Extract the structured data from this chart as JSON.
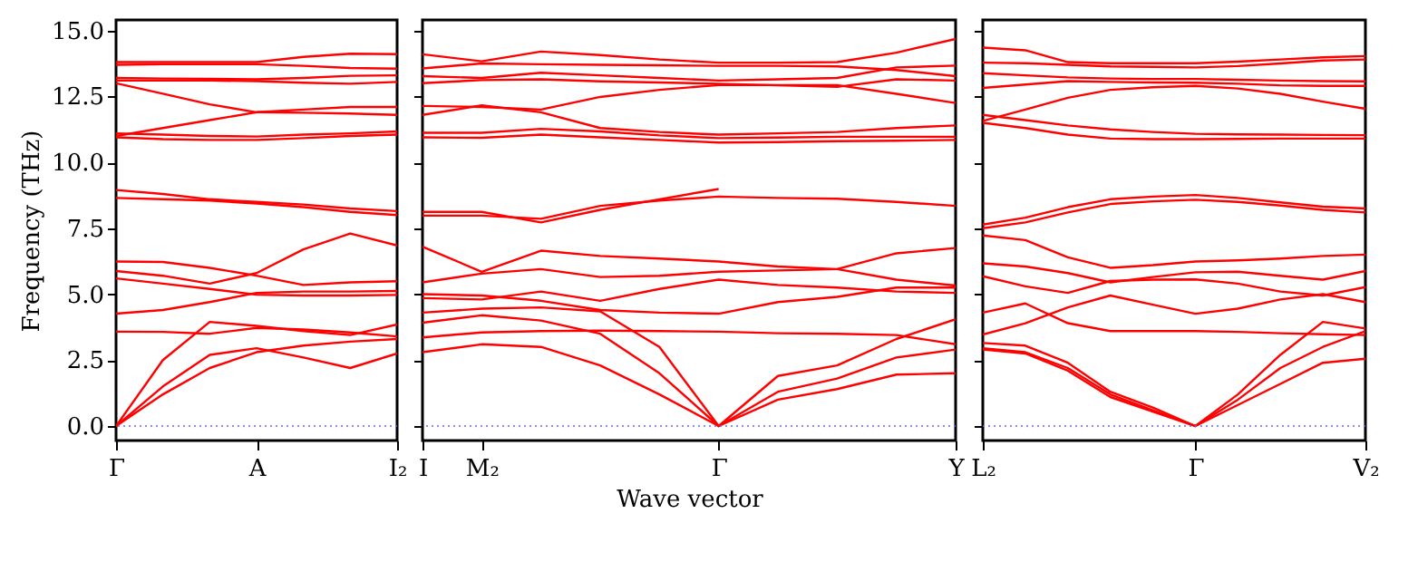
{
  "chart_data": [
    {
      "type": "line",
      "ylabel": "Frequency (THz)",
      "categories": [
        "Γ",
        null,
        null,
        "A",
        null,
        null,
        "I₂"
      ],
      "ylim": [
        -0.55,
        15.4
      ],
      "yticks": [
        {
          "value": 0,
          "label": "0.0"
        },
        {
          "value": 2.5,
          "label": "2.5"
        },
        {
          "value": 5,
          "label": "5.0"
        },
        {
          "value": 7.5,
          "label": "7.5"
        },
        {
          "value": 10,
          "label": "10.0"
        },
        {
          "value": 12.5,
          "label": "12.5"
        },
        {
          "value": 15,
          "label": "15.0"
        }
      ],
      "ref_lines": [
        {
          "axis": "y",
          "value": 0,
          "color": "#6666ff",
          "line_style": "dotted"
        }
      ],
      "series": [
        {
          "color": "#ff0000",
          "values": [
            13.8,
            13.8,
            13.8,
            13.8,
            14.0,
            14.12,
            14.1
          ]
        },
        {
          "color": "#ff0000",
          "values": [
            13.7,
            13.72,
            13.72,
            13.72,
            13.66,
            13.58,
            13.55
          ]
        },
        {
          "color": "#ff0000",
          "values": [
            13.2,
            13.18,
            13.17,
            13.15,
            13.2,
            13.28,
            13.3
          ]
        },
        {
          "color": "#ff0000",
          "values": [
            13.1,
            13.1,
            13.1,
            13.08,
            13.02,
            12.98,
            13.05
          ]
        },
        {
          "color": "#ff0000",
          "values": [
            13.0,
            12.6,
            12.2,
            11.9,
            11.88,
            11.85,
            11.8
          ]
        },
        {
          "color": "#ff0000",
          "values": [
            11.0,
            11.3,
            11.6,
            11.9,
            12.0,
            12.1,
            12.1
          ]
        },
        {
          "color": "#ff0000",
          "values": [
            11.1,
            11.05,
            11.0,
            10.98,
            11.05,
            11.1,
            11.17
          ]
        },
        {
          "color": "#ff0000",
          "values": [
            10.95,
            10.88,
            10.85,
            10.85,
            10.92,
            11.0,
            11.05
          ]
        },
        {
          "color": "#ff0000",
          "values": [
            8.95,
            8.8,
            8.6,
            8.5,
            8.4,
            8.25,
            8.15
          ]
        },
        {
          "color": "#ff0000",
          "values": [
            8.65,
            8.6,
            8.55,
            8.44,
            8.3,
            8.12,
            8.0
          ]
        },
        {
          "color": "#ff0000",
          "values": [
            6.24,
            6.22,
            6.0,
            5.7,
            5.35,
            5.45,
            5.49
          ]
        },
        {
          "color": "#ff0000",
          "values": [
            5.88,
            5.7,
            5.4,
            5.8,
            6.7,
            7.3,
            6.85
          ]
        },
        {
          "color": "#ff0000",
          "values": [
            5.6,
            5.4,
            5.2,
            4.98,
            4.95,
            4.95,
            4.97
          ]
        },
        {
          "color": "#ff0000",
          "values": [
            4.26,
            4.4,
            4.7,
            5.05,
            5.1,
            5.1,
            5.12
          ]
        },
        {
          "color": "#ff0000",
          "values": [
            0,
            2.5,
            3.95,
            3.8,
            3.6,
            3.45,
            3.85
          ]
        },
        {
          "color": "#ff0000",
          "values": [
            3.58,
            3.57,
            3.5,
            3.72,
            3.66,
            3.55,
            3.4
          ]
        },
        {
          "color": "#ff0000",
          "values": [
            0,
            1.5,
            2.7,
            2.95,
            2.6,
            2.2,
            2.75
          ]
        },
        {
          "color": "#ff0000",
          "values": [
            0,
            1.2,
            2.2,
            2.8,
            3.05,
            3.2,
            3.3
          ]
        }
      ]
    },
    {
      "type": "line",
      "xlabel": "Wave vector",
      "tick_labels": "x",
      "categories": [
        "I",
        "M₂",
        null,
        null,
        null,
        "Γ",
        null,
        null,
        null,
        "Y"
      ],
      "ylim": [
        -0.55,
        15.4
      ],
      "yticks": [
        {
          "value": 0,
          "label": null
        },
        {
          "value": 2.5,
          "label": null
        },
        {
          "value": 5,
          "label": null
        },
        {
          "value": 7.5,
          "label": null
        },
        {
          "value": 10,
          "label": null
        },
        {
          "value": 12.5,
          "label": null
        },
        {
          "value": 15,
          "label": null
        }
      ],
      "ref_lines": [
        {
          "axis": "y",
          "value": 0,
          "color": "#6666ff",
          "line_style": "dotted"
        }
      ],
      "series": [
        {
          "color": "#ff0000",
          "values": [
            14.1,
            13.83,
            14.2,
            14.07,
            13.9,
            13.78,
            13.78,
            13.8,
            14.16,
            14.68
          ]
        },
        {
          "color": "#ff0000",
          "values": [
            13.56,
            13.75,
            13.72,
            13.7,
            13.68,
            13.66,
            13.66,
            13.64,
            13.5,
            13.27
          ]
        },
        {
          "color": "#ff0000",
          "values": [
            13.27,
            13.2,
            13.4,
            13.3,
            13.2,
            13.1,
            13.15,
            13.2,
            13.6,
            13.67
          ]
        },
        {
          "color": "#ff0000",
          "values": [
            13.0,
            13.12,
            13.15,
            13.07,
            13.03,
            12.98,
            12.92,
            12.86,
            13.15,
            13.1
          ]
        },
        {
          "color": "#ff0000",
          "values": [
            12.14,
            12.1,
            12.0,
            12.48,
            12.75,
            12.93,
            12.93,
            12.93,
            12.6,
            12.25
          ]
        },
        {
          "color": "#ff0000",
          "values": [
            11.8,
            12.16,
            11.9,
            11.3,
            11.15,
            11.05,
            11.1,
            11.15,
            11.3,
            11.4
          ]
        },
        {
          "color": "#ff0000",
          "values": [
            11.12,
            11.12,
            11.27,
            11.17,
            11.02,
            10.92,
            10.94,
            10.97,
            10.97,
            10.97
          ]
        },
        {
          "color": "#ff0000",
          "values": [
            10.95,
            10.93,
            11.05,
            10.95,
            10.85,
            10.75,
            10.77,
            10.8,
            10.82,
            10.85
          ]
        },
        {
          "color": "#ff0000",
          "values": [
            8.12,
            8.12,
            7.72,
            8.2,
            8.6,
            8.99,
            null,
            null,
            null,
            null
          ]
        },
        {
          "color": "#ff0000",
          "values": [
            7.98,
            7.98,
            7.86,
            8.35,
            8.55,
            8.7,
            8.65,
            8.62,
            8.5,
            8.35
          ]
        },
        {
          "color": "#ff0000",
          "values": [
            6.8,
            5.85,
            6.65,
            6.45,
            6.35,
            6.24,
            6.05,
            5.95,
            5.55,
            5.33
          ]
        },
        {
          "color": "#ff0000",
          "values": [
            5.45,
            5.78,
            5.95,
            5.65,
            5.7,
            5.85,
            5.9,
            5.95,
            6.55,
            6.75
          ]
        },
        {
          "color": "#ff0000",
          "values": [
            4.85,
            4.8,
            5.1,
            4.75,
            5.2,
            5.55,
            5.35,
            5.25,
            5.1,
            5.05
          ]
        },
        {
          "color": "#ff0000",
          "values": [
            5.0,
            4.95,
            4.75,
            4.4,
            4.3,
            4.26,
            4.7,
            4.9,
            5.25,
            5.25
          ]
        },
        {
          "color": "#ff0000",
          "values": [
            3.36,
            3.55,
            3.6,
            3.62,
            3.6,
            3.58,
            3.52,
            3.5,
            3.45,
            3.1
          ]
        },
        {
          "color": "#ff0000",
          "values": [
            4.3,
            4.45,
            4.5,
            4.35,
            3.0,
            0,
            1.9,
            2.3,
            3.3,
            4.05
          ]
        },
        {
          "color": "#ff0000",
          "values": [
            3.92,
            4.2,
            4.0,
            3.5,
            2.0,
            0,
            1.3,
            1.8,
            2.6,
            2.9
          ]
        },
        {
          "color": "#ff0000",
          "values": [
            2.8,
            3.1,
            3.0,
            2.3,
            1.2,
            0,
            1.0,
            1.4,
            1.95,
            2.0
          ]
        }
      ]
    },
    {
      "type": "line",
      "tick_labels": "x",
      "categories": [
        "L₂",
        null,
        null,
        null,
        null,
        "Γ",
        null,
        null,
        null,
        "V₂"
      ],
      "ylim": [
        -0.55,
        15.4
      ],
      "yticks": [
        {
          "value": 0,
          "label": null
        },
        {
          "value": 2.5,
          "label": null
        },
        {
          "value": 5,
          "label": null
        },
        {
          "value": 7.5,
          "label": null
        },
        {
          "value": 10,
          "label": null
        },
        {
          "value": 12.5,
          "label": null
        },
        {
          "value": 15,
          "label": null
        }
      ],
      "ref_lines": [
        {
          "axis": "y",
          "value": 0,
          "color": "#6666ff",
          "line_style": "dotted"
        }
      ],
      "series": [
        {
          "color": "#ff0000",
          "values": [
            14.35,
            14.25,
            13.8,
            13.76,
            13.76,
            13.76,
            13.82,
            13.9,
            13.98,
            14.03
          ]
        },
        {
          "color": "#ff0000",
          "values": [
            13.78,
            13.76,
            13.7,
            13.64,
            13.62,
            13.6,
            13.65,
            13.75,
            13.86,
            13.9
          ]
        },
        {
          "color": "#ff0000",
          "values": [
            13.38,
            13.3,
            13.22,
            13.18,
            13.16,
            13.16,
            13.13,
            13.1,
            13.08,
            13.07
          ]
        },
        {
          "color": "#ff0000",
          "values": [
            12.82,
            12.95,
            13.08,
            13.05,
            13.03,
            13.02,
            12.98,
            12.92,
            12.9,
            12.9
          ]
        },
        {
          "color": "#ff0000",
          "values": [
            11.57,
            12.0,
            12.45,
            12.75,
            12.85,
            12.9,
            12.8,
            12.6,
            12.3,
            12.03
          ]
        },
        {
          "color": "#ff0000",
          "values": [
            11.8,
            11.6,
            11.4,
            11.25,
            11.15,
            11.08,
            11.06,
            11.05,
            11.04,
            11.03
          ]
        },
        {
          "color": "#ff0000",
          "values": [
            11.5,
            11.3,
            11.05,
            10.9,
            10.88,
            10.88,
            10.89,
            10.9,
            10.9,
            10.9
          ]
        },
        {
          "color": "#ff0000",
          "values": [
            7.64,
            7.9,
            8.3,
            8.6,
            8.7,
            8.76,
            8.65,
            8.48,
            8.32,
            8.25
          ]
        },
        {
          "color": "#ff0000",
          "values": [
            7.5,
            7.72,
            8.1,
            8.42,
            8.52,
            8.58,
            8.5,
            8.36,
            8.2,
            8.1
          ]
        },
        {
          "color": "#ff0000",
          "values": [
            7.23,
            7.05,
            6.4,
            6.0,
            6.1,
            6.24,
            6.28,
            6.35,
            6.45,
            6.5
          ]
        },
        {
          "color": "#ff0000",
          "values": [
            6.17,
            6.05,
            5.8,
            5.45,
            5.65,
            5.83,
            5.85,
            5.7,
            5.55,
            5.88
          ]
        },
        {
          "color": "#ff0000",
          "values": [
            5.68,
            5.3,
            5.05,
            5.5,
            5.55,
            5.56,
            5.4,
            5.1,
            4.95,
            5.27
          ]
        },
        {
          "color": "#ff0000",
          "values": [
            4.3,
            4.65,
            3.9,
            3.6,
            3.6,
            3.6,
            3.57,
            3.52,
            3.48,
            3.45
          ]
        },
        {
          "color": "#ff0000",
          "values": [
            3.47,
            3.9,
            4.5,
            4.95,
            4.6,
            4.26,
            4.45,
            4.8,
            5.0,
            4.7
          ]
        },
        {
          "color": "#ff0000",
          "values": [
            3.15,
            3.05,
            2.4,
            1.3,
            0.7,
            0,
            1.2,
            2.7,
            3.95,
            3.7
          ]
        },
        {
          "color": "#ff0000",
          "values": [
            2.95,
            2.8,
            2.2,
            1.2,
            0.6,
            0,
            1.0,
            2.2,
            3.0,
            3.6
          ]
        },
        {
          "color": "#ff0000",
          "values": [
            2.9,
            2.75,
            2.1,
            1.1,
            0.55,
            0,
            0.8,
            1.6,
            2.4,
            2.55
          ]
        }
      ]
    }
  ]
}
